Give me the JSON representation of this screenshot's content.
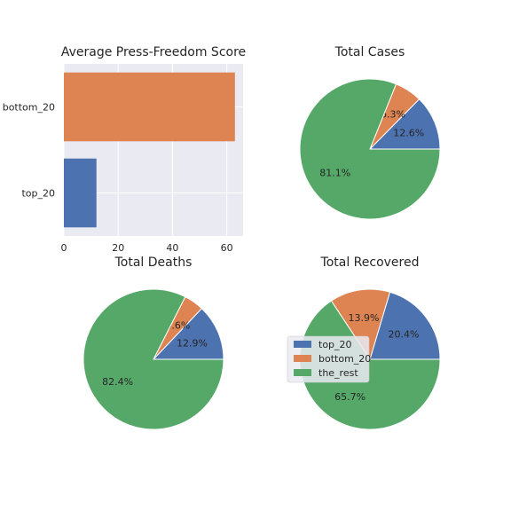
{
  "colors": {
    "top_20": "#4c72b0",
    "bottom_20": "#dd8452",
    "the_rest": "#55a868",
    "axes_bg": "#eaeaf2",
    "grid": "#ffffff"
  },
  "chart_data": [
    {
      "type": "bar",
      "orientation": "horizontal",
      "title": "Average Press-Freedom Score",
      "categories": [
        "top_20",
        "bottom_20"
      ],
      "values": [
        12,
        63
      ],
      "xlim": [
        0,
        66
      ],
      "xticks": [
        0,
        20,
        40,
        60
      ],
      "grid": true
    },
    {
      "type": "pie",
      "title": "Total Cases",
      "labels": [
        "top_20",
        "bottom_20",
        "the_rest"
      ],
      "values": [
        12.6,
        6.3,
        81.1
      ],
      "autopct": [
        "12.6%",
        "6.3%",
        "81.1%"
      ]
    },
    {
      "type": "pie",
      "title": "Total Deaths",
      "labels": [
        "top_20",
        "bottom_20",
        "the_rest"
      ],
      "values": [
        12.9,
        4.6,
        82.4
      ],
      "autopct": [
        "12.9%",
        "4.6%",
        "82.4%"
      ]
    },
    {
      "type": "pie",
      "title": "Total Recovered",
      "labels": [
        "top_20",
        "bottom_20",
        "the_rest"
      ],
      "values": [
        20.4,
        13.9,
        65.7
      ],
      "autopct": [
        "20.4%",
        "13.9%",
        "65.7%"
      ],
      "legend": {
        "entries": [
          "top_20",
          "bottom_20",
          "the_rest"
        ],
        "placement": "center-left"
      }
    }
  ]
}
